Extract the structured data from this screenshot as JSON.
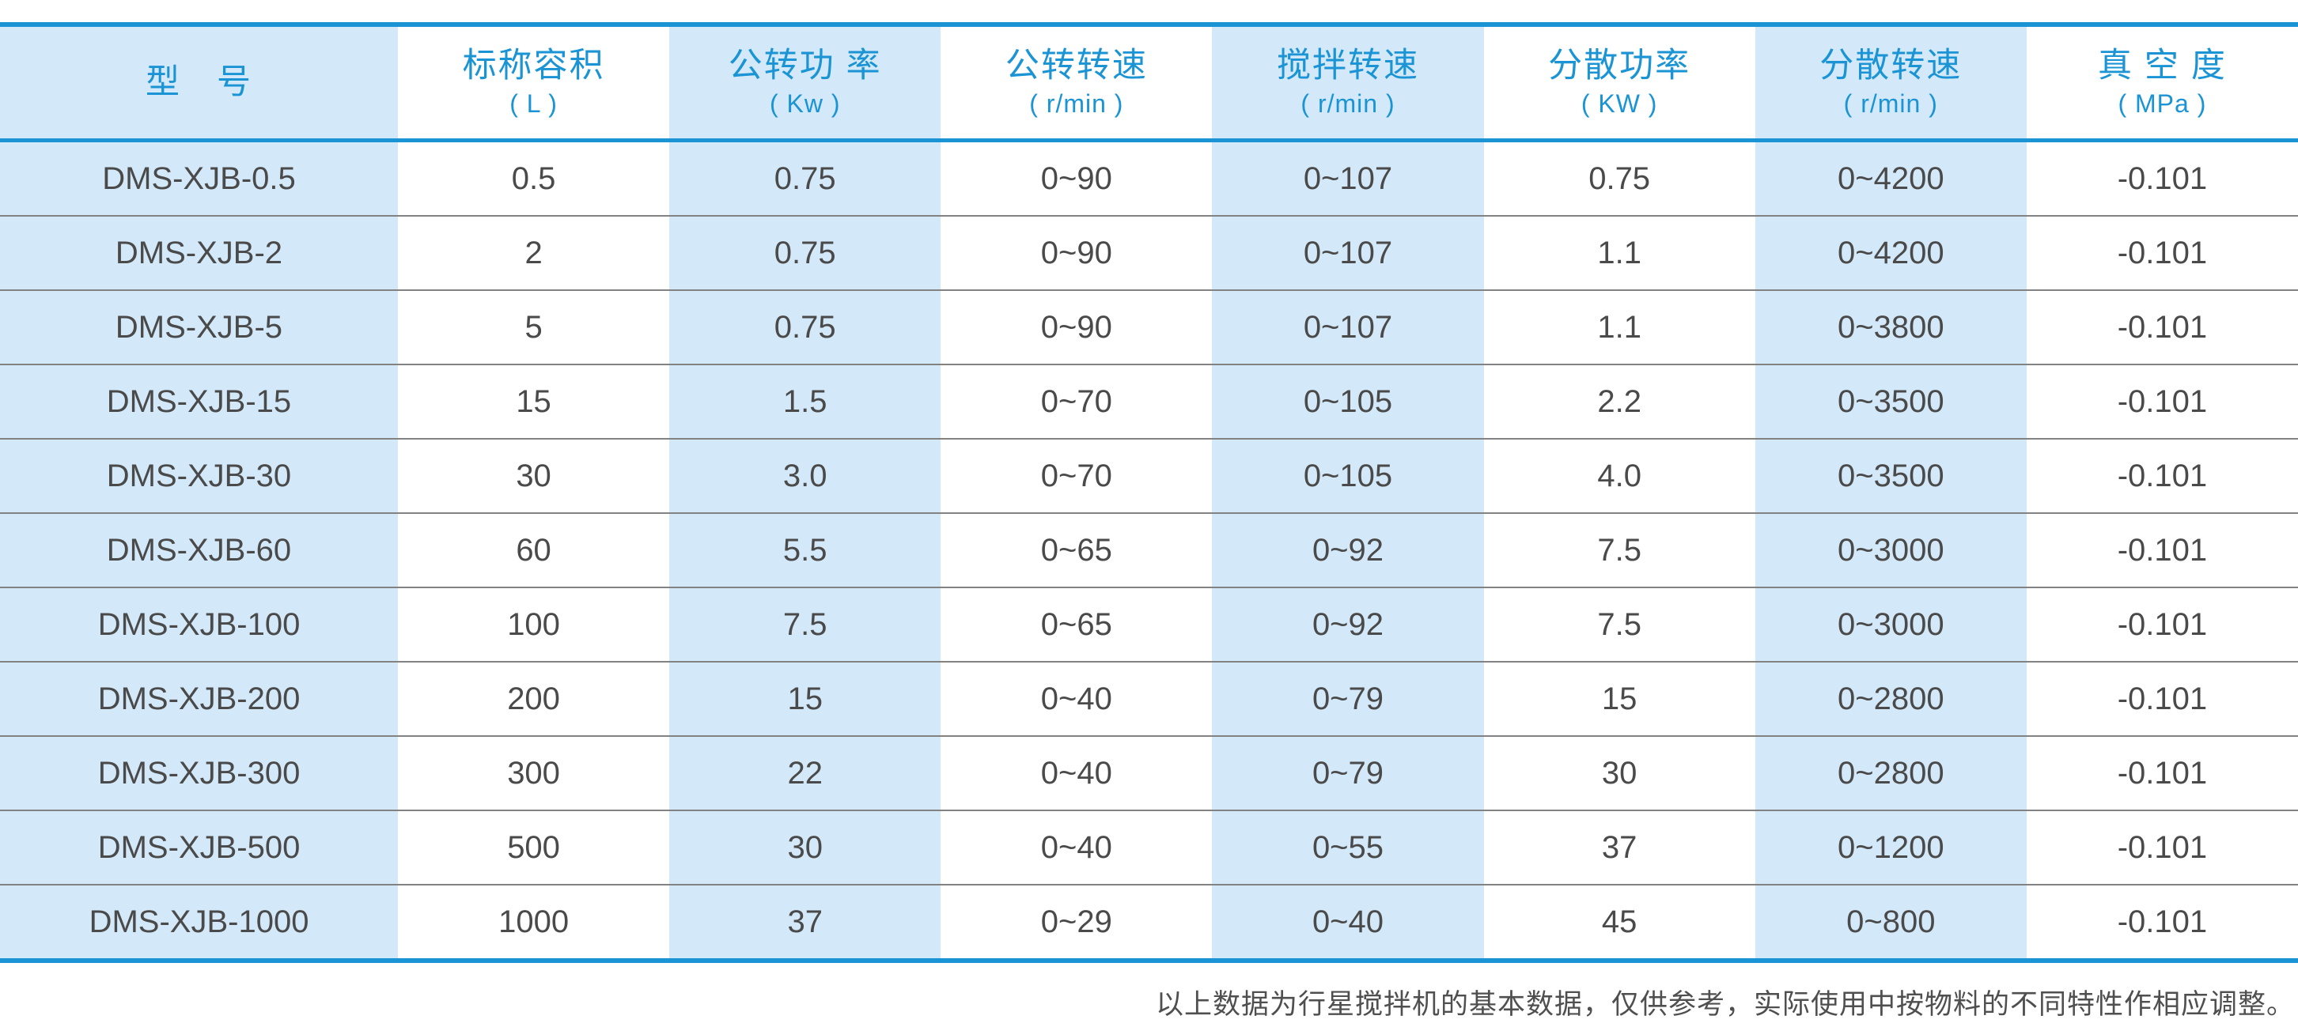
{
  "chart_data": {
    "type": "table",
    "columns": [
      {
        "key": "model",
        "title": "型　号",
        "unit": ""
      },
      {
        "key": "nominal-capacity",
        "title": "标称容积",
        "unit": "( L )"
      },
      {
        "key": "revolution-power",
        "title": "公转功 率",
        "unit": "( Kw )"
      },
      {
        "key": "revolution-speed",
        "title": "公转转速",
        "unit": "( r/min )"
      },
      {
        "key": "stirring-speed",
        "title": "搅拌转速",
        "unit": "( r/min )"
      },
      {
        "key": "dispersing-power",
        "title": "分散功率",
        "unit": "( KW )"
      },
      {
        "key": "dispersing-speed",
        "title": "分散转速",
        "unit": "( r/min )"
      },
      {
        "key": "vacuum-degree",
        "title": "真 空 度",
        "unit": "( MPa )"
      }
    ],
    "rows": [
      [
        "DMS-XJB-0.5",
        "0.5",
        "0.75",
        "0~90",
        "0~107",
        "0.75",
        "0~4200",
        "-0.101"
      ],
      [
        "DMS-XJB-2",
        "2",
        "0.75",
        "0~90",
        "0~107",
        "1.1",
        "0~4200",
        "-0.101"
      ],
      [
        "DMS-XJB-5",
        "5",
        "0.75",
        "0~90",
        "0~107",
        "1.1",
        "0~3800",
        "-0.101"
      ],
      [
        "DMS-XJB-15",
        "15",
        "1.5",
        "0~70",
        "0~105",
        "2.2",
        "0~3500",
        "-0.101"
      ],
      [
        "DMS-XJB-30",
        "30",
        "3.0",
        "0~70",
        "0~105",
        "4.0",
        "0~3500",
        "-0.101"
      ],
      [
        "DMS-XJB-60",
        "60",
        "5.5",
        "0~65",
        "0~92",
        "7.5",
        "0~3000",
        "-0.101"
      ],
      [
        "DMS-XJB-100",
        "100",
        "7.5",
        "0~65",
        "0~92",
        "7.5",
        "0~3000",
        "-0.101"
      ],
      [
        "DMS-XJB-200",
        "200",
        "15",
        "0~40",
        "0~79",
        "15",
        "0~2800",
        "-0.101"
      ],
      [
        "DMS-XJB-300",
        "300",
        "22",
        "0~40",
        "0~79",
        "30",
        "0~2800",
        "-0.101"
      ],
      [
        "DMS-XJB-500",
        "500",
        "30",
        "0~40",
        "0~55",
        "37",
        "0~1200",
        "-0.101"
      ],
      [
        "DMS-XJB-1000",
        "1000",
        "37",
        "0~29",
        "0~40",
        "45",
        "0~800",
        "-0.101"
      ]
    ],
    "footnote": "以上数据为行星搅拌机的基本数据，仅供参考，实际使用中按物料的不同特性作相应调整。",
    "layout_hints": {
      "column_striping": "odd columns shaded light blue",
      "grid": "horizontal row dividers only"
    }
  },
  "colors": {
    "accent_blue": "#1a94d4",
    "cell_blue_bg": "#d3e8f8",
    "body_text": "#4a4a4a",
    "divider": "#828282",
    "note_text": "#4f4f4f",
    "page_bg": "#ffffff"
  }
}
